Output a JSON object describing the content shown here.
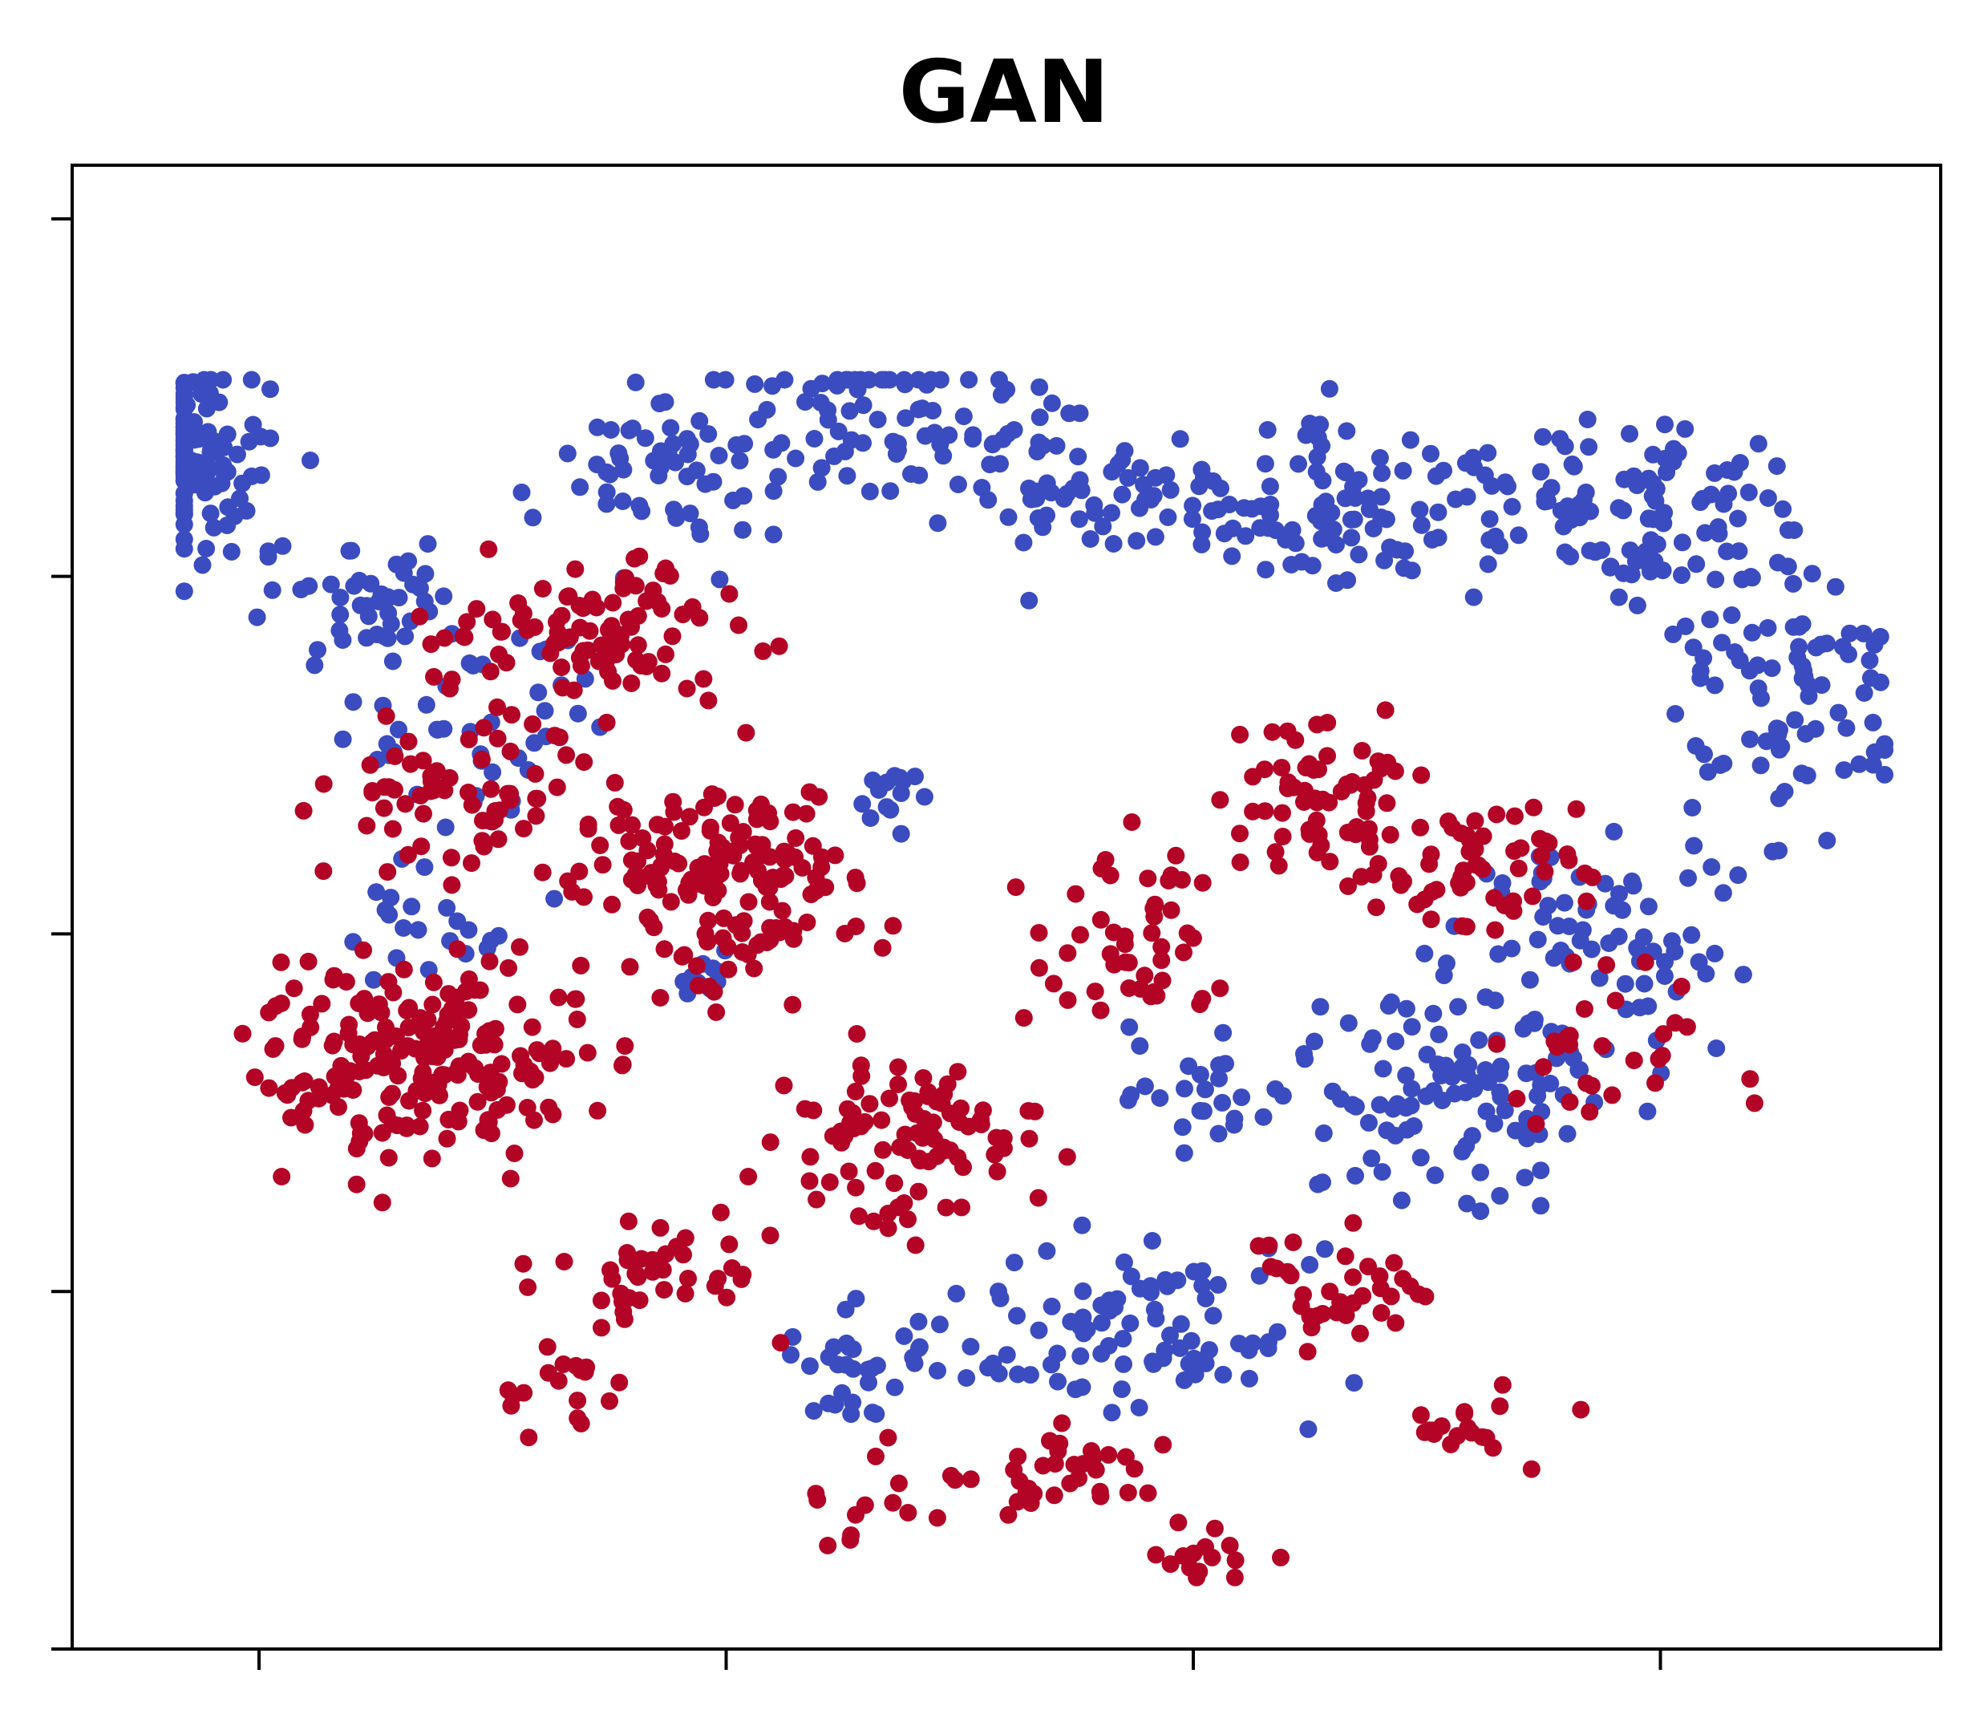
{
  "chart_data": {
    "type": "scatter",
    "title": "GAN",
    "xlabel": "",
    "ylabel": "",
    "xlim": [
      -50,
      50
    ],
    "ylim": [
      -40,
      43
    ],
    "xticks": [
      -40,
      -15,
      10,
      35
    ],
    "yticks": [
      -40,
      -20,
      0,
      20,
      40
    ],
    "tick_labels_visible": false,
    "grid": false,
    "legend": "none",
    "colors": {
      "blue": "#3b4cc0",
      "red": "#b40426"
    },
    "series": [
      {
        "color": "blue",
        "regions": [
          {
            "center": [
              -44,
              26.5
            ],
            "spread": [
              4,
              4
            ],
            "count": 130
          },
          {
            "center": [
              -34,
              19
            ],
            "spread": [
              5,
              2.5
            ],
            "count": 45
          },
          {
            "center": [
              -18,
              26
            ],
            "spread": [
              6,
              4
            ],
            "count": 60
          },
          {
            "center": [
              -5,
              29
            ],
            "spread": [
              6,
              4
            ],
            "count": 75
          },
          {
            "center": [
              5,
              24
            ],
            "spread": [
              6,
              4
            ],
            "count": 70
          },
          {
            "center": [
              18,
              24
            ],
            "spread": [
              6,
              4
            ],
            "count": 80
          },
          {
            "center": [
              33,
              24
            ],
            "spread": [
              8,
              4
            ],
            "count": 110
          },
          {
            "center": [
              42,
              14
            ],
            "spread": [
              5,
              7
            ],
            "count": 90
          },
          {
            "center": [
              33,
              0
            ],
            "spread": [
              6,
              5
            ],
            "count": 70
          },
          {
            "center": [
              24,
              -9
            ],
            "spread": [
              7,
              5
            ],
            "count": 110
          },
          {
            "center": [
              8,
              -22
            ],
            "spread": [
              8,
              4
            ],
            "count": 90
          },
          {
            "center": [
              -8,
              -24
            ],
            "spread": [
              5,
              3
            ],
            "count": 35
          },
          {
            "center": [
              -29,
              12
            ],
            "spread": [
              6,
              5
            ],
            "count": 45
          },
          {
            "center": [
              -30,
              1
            ],
            "spread": [
              5,
              3
            ],
            "count": 22
          },
          {
            "center": [
              -6,
              8
            ],
            "spread": [
              2.5,
              2
            ],
            "count": 14
          },
          {
            "center": [
              -16,
              -2
            ],
            "spread": [
              2,
              1.5
            ],
            "count": 10
          },
          {
            "center": [
              11,
              -9
            ],
            "spread": [
              4,
              4
            ],
            "count": 25
          }
        ]
      },
      {
        "color": "red",
        "regions": [
          {
            "center": [
              -31,
              -7
            ],
            "spread": [
              7,
              5
            ],
            "count": 210
          },
          {
            "center": [
              -15,
              3
            ],
            "spread": [
              6,
              5
            ],
            "count": 160
          },
          {
            "center": [
              -22,
              17
            ],
            "spread": [
              7,
              4
            ],
            "count": 100
          },
          {
            "center": [
              -29,
              8
            ],
            "spread": [
              6,
              4
            ],
            "count": 70
          },
          {
            "center": [
              -5,
              -12
            ],
            "spread": [
              6,
              4
            ],
            "count": 95
          },
          {
            "center": [
              7,
              0
            ],
            "spread": [
              4,
              5
            ],
            "count": 50
          },
          {
            "center": [
              17,
              8
            ],
            "spread": [
              4,
              4
            ],
            "count": 60
          },
          {
            "center": [
              25,
              4
            ],
            "spread": [
              5,
              3
            ],
            "count": 60
          },
          {
            "center": [
              19,
              -20
            ],
            "spread": [
              5,
              2.5
            ],
            "count": 35
          },
          {
            "center": [
              3,
              -30
            ],
            "spread": [
              5,
              3
            ],
            "count": 35
          },
          {
            "center": [
              -19,
              -19
            ],
            "spread": [
              5,
              3
            ],
            "count": 40
          },
          {
            "center": [
              -7,
              -31
            ],
            "spread": [
              3,
              2
            ],
            "count": 12
          },
          {
            "center": [
              33,
              -6
            ],
            "spread": [
              6,
              4
            ],
            "count": 30
          },
          {
            "center": [
              -24,
              -25
            ],
            "spread": [
              4,
              2
            ],
            "count": 18
          },
          {
            "center": [
              24,
              -28
            ],
            "spread": [
              4,
              2.5
            ],
            "count": 20
          },
          {
            "center": [
              10,
              -35
            ],
            "spread": [
              3,
              2
            ],
            "count": 15
          }
        ]
      }
    ]
  }
}
